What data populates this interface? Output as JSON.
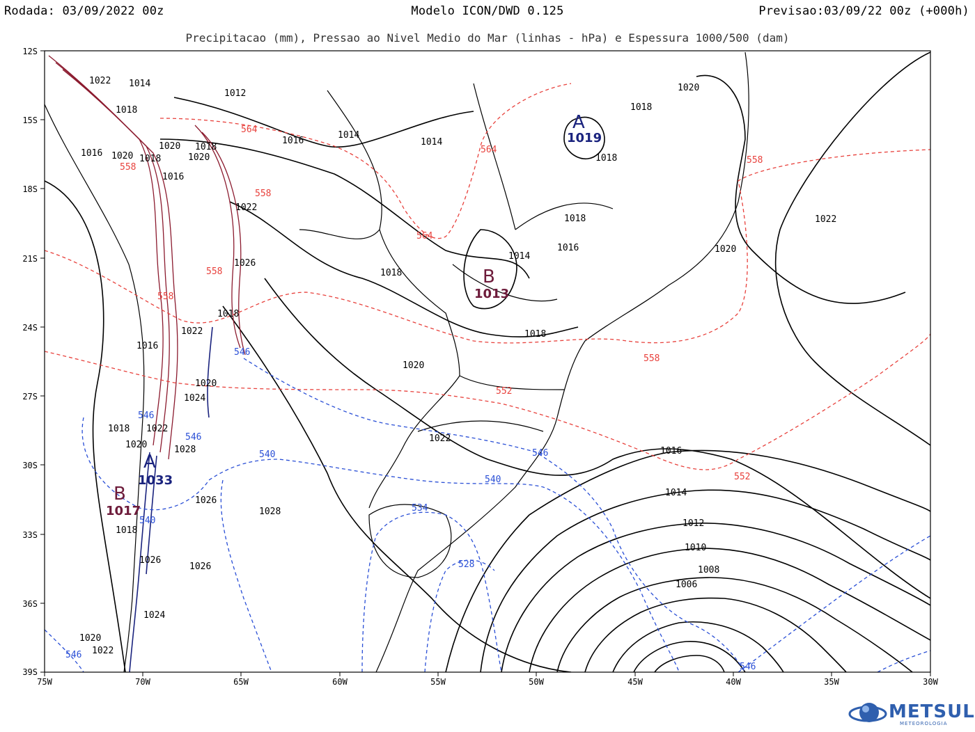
{
  "header": {
    "left": "Rodada: 03/09/2022 00z",
    "center": "Modelo ICON/DWD 0.125",
    "right": "Previsao:03/09/22 00z (+000h)",
    "subtitle": "Precipitacao (mm), Pressao ao Nivel Medio do Mar (linhas - hPa) e Espessura 1000/500 (dam)"
  },
  "axes": {
    "lon_labels": [
      "75W",
      "70W",
      "65W",
      "60W",
      "55W",
      "50W",
      "45W",
      "40W",
      "35W",
      "30W"
    ],
    "lat_labels": [
      "12S",
      "15S",
      "18S",
      "21S",
      "24S",
      "27S",
      "30S",
      "33S",
      "36S",
      "39S"
    ]
  },
  "centers": [
    {
      "letter": "A",
      "value": "1019",
      "color": "#1a237e"
    },
    {
      "letter": "B",
      "value": "1013",
      "color": "#6d1b3a"
    },
    {
      "letter": "A",
      "value": "1033",
      "color": "#1a237e"
    },
    {
      "letter": "B",
      "value": "1017",
      "color": "#6d1b3a"
    }
  ],
  "isobar_labels": [
    "1022",
    "1014",
    "1012",
    "1018",
    "1016",
    "1020",
    "1018",
    "1020",
    "1016",
    "1014",
    "1016",
    "1014",
    "1020",
    "1018",
    "1018",
    "1022",
    "1018",
    "1016",
    "1014",
    "1020",
    "1022",
    "1018",
    "1020",
    "1026",
    "1018",
    "1022",
    "1016",
    "1018",
    "1018",
    "1020",
    "1020",
    "1024",
    "1020",
    "1018",
    "1022",
    "1028",
    "1022",
    "1026",
    "1028",
    "1018",
    "1016",
    "1014",
    "1012",
    "1010",
    "1008",
    "1006",
    "1026",
    "1026",
    "1024",
    "1020",
    "1022"
  ],
  "thickness_labels": [
    "564",
    "564",
    "564",
    "558",
    "558",
    "558",
    "558",
    "558",
    "552",
    "552",
    "546",
    "546",
    "546",
    "540",
    "546",
    "540",
    "540",
    "534",
    "528",
    "546",
    "546",
    "558"
  ],
  "colors": {
    "isobar": "#000000",
    "thickness_warm": "#e8413c",
    "thickness_cold": "#2a4fd6",
    "precip": "#8b1a2e",
    "high_center": "#1a237e",
    "low_center": "#6d1b3a",
    "brand": "#2f5fae"
  },
  "logo": {
    "name": "METSUL",
    "sub": "METEOROLOGIA"
  }
}
